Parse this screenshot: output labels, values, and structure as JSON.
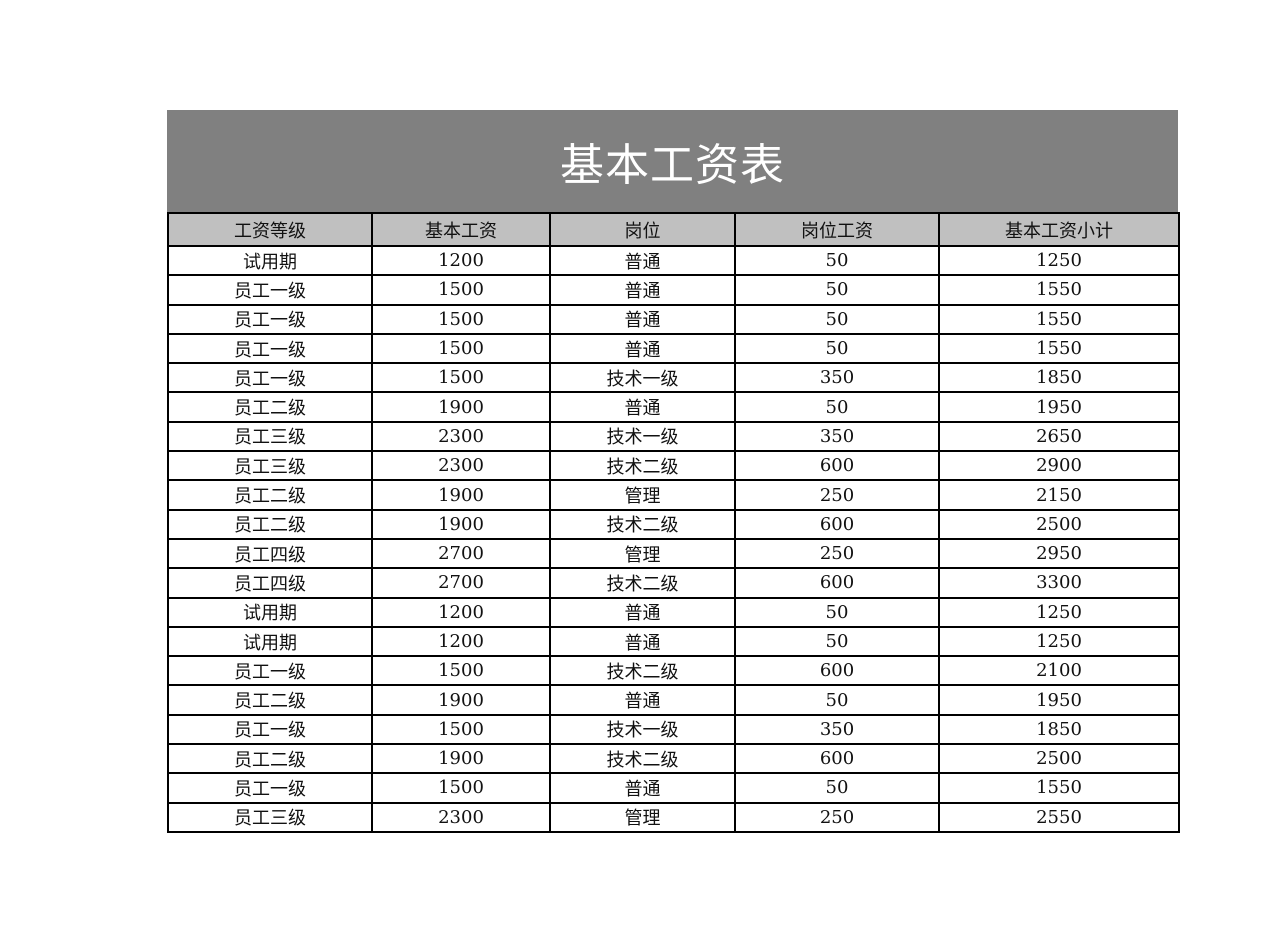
{
  "title": "基本工资表",
  "colors": {
    "title_bg": "#808080",
    "header_bg": "#c0c0c0"
  },
  "headers": [
    "工资等级",
    "基本工资",
    "岗位",
    "岗位工资",
    "基本工资小计"
  ],
  "rows": [
    [
      "试用期",
      "1200",
      "普通",
      "50",
      "1250"
    ],
    [
      "员工一级",
      "1500",
      "普通",
      "50",
      "1550"
    ],
    [
      "员工一级",
      "1500",
      "普通",
      "50",
      "1550"
    ],
    [
      "员工一级",
      "1500",
      "普通",
      "50",
      "1550"
    ],
    [
      "员工一级",
      "1500",
      "技术一级",
      "350",
      "1850"
    ],
    [
      "员工二级",
      "1900",
      "普通",
      "50",
      "1950"
    ],
    [
      "员工三级",
      "2300",
      "技术一级",
      "350",
      "2650"
    ],
    [
      "员工三级",
      "2300",
      "技术二级",
      "600",
      "2900"
    ],
    [
      "员工二级",
      "1900",
      "管理",
      "250",
      "2150"
    ],
    [
      "员工二级",
      "1900",
      "技术二级",
      "600",
      "2500"
    ],
    [
      "员工四级",
      "2700",
      "管理",
      "250",
      "2950"
    ],
    [
      "员工四级",
      "2700",
      "技术二级",
      "600",
      "3300"
    ],
    [
      "试用期",
      "1200",
      "普通",
      "50",
      "1250"
    ],
    [
      "试用期",
      "1200",
      "普通",
      "50",
      "1250"
    ],
    [
      "员工一级",
      "1500",
      "技术二级",
      "600",
      "2100"
    ],
    [
      "员工二级",
      "1900",
      "普通",
      "50",
      "1950"
    ],
    [
      "员工一级",
      "1500",
      "技术一级",
      "350",
      "1850"
    ],
    [
      "员工二级",
      "1900",
      "技术二级",
      "600",
      "2500"
    ],
    [
      "员工一级",
      "1500",
      "普通",
      "50",
      "1550"
    ],
    [
      "员工三级",
      "2300",
      "管理",
      "250",
      "2550"
    ]
  ]
}
